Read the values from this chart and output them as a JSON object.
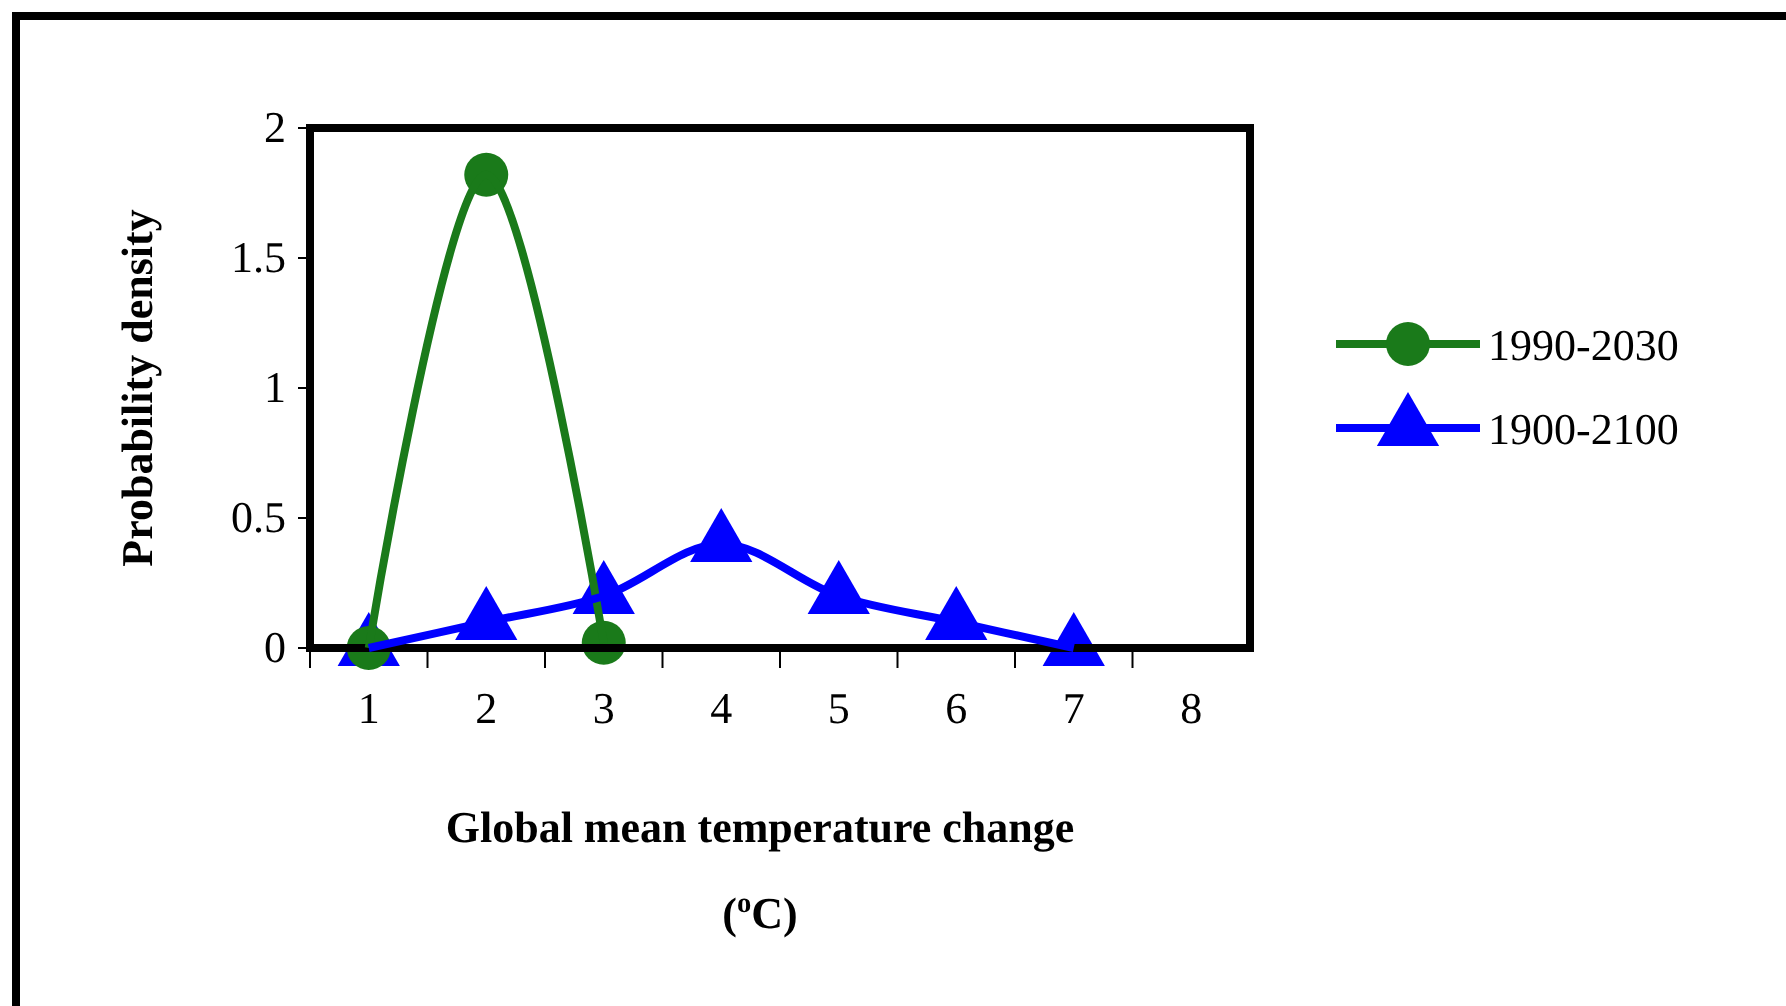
{
  "chart_data": {
    "type": "line",
    "xlabel": "Global mean temperature change ($^{o}$C)",
    "ylabel": "Probability density",
    "series": [
      {
        "name": "1990-2030",
        "color": "#1a7a1a",
        "marker": "circle",
        "x": [
          1,
          2,
          3
        ],
        "values": [
          0,
          1.82,
          0.02
        ]
      },
      {
        "name": "1900-2100",
        "color": "#0000ff",
        "marker": "triangle",
        "x": [
          1,
          2,
          3,
          4,
          5,
          6,
          7
        ],
        "values": [
          0,
          0.1,
          0.2,
          0.4,
          0.2,
          0.1,
          0
        ]
      }
    ],
    "xlim": [
      0.5,
      8.5
    ],
    "xticks": [
      1,
      2,
      3,
      4,
      5,
      6,
      7,
      8
    ],
    "ylim": [
      0,
      2
    ],
    "yticks": [
      0,
      0.5,
      1,
      1.5,
      2
    ],
    "grid": false,
    "legend": "right",
    "line_style": "solid"
  }
}
